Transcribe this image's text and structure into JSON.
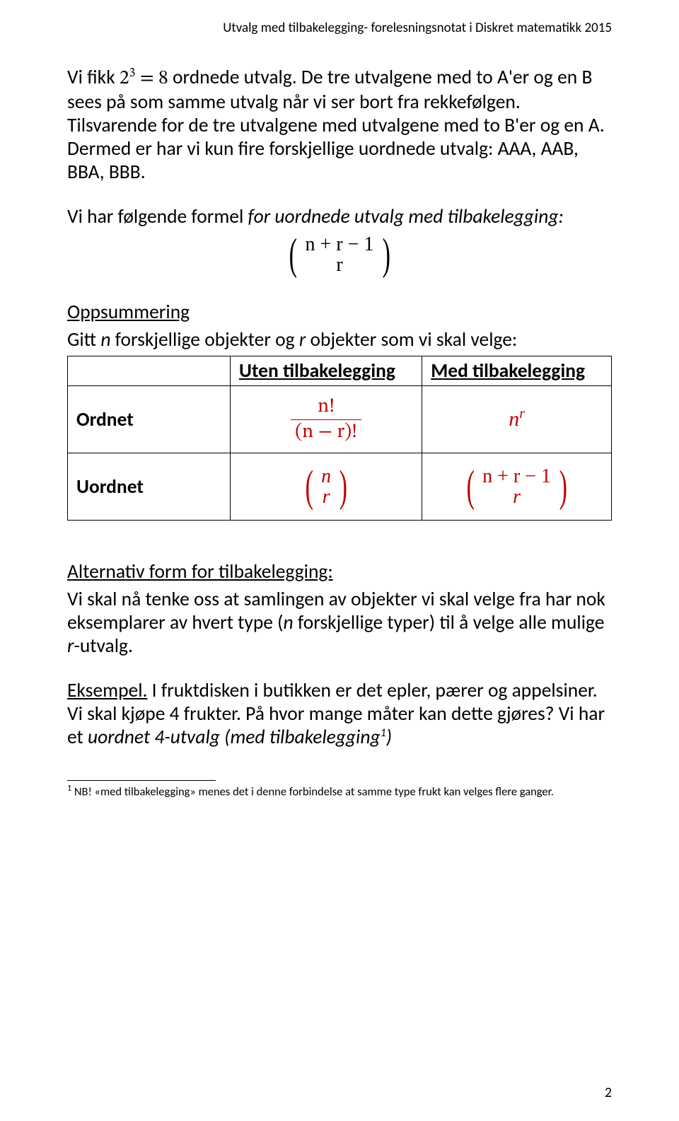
{
  "colors": {
    "text": "#000000",
    "formula_red": "#c00000",
    "background": "#ffffff",
    "border": "#000000"
  },
  "typography": {
    "body_fontsize_pt": 20,
    "header_fontsize_pt": 14,
    "footnote_fontsize_pt": 12,
    "body_font": "Calibri",
    "math_font": "Cambria Math"
  },
  "header": "Utvalg med tilbakelegging- forelesningsnotat i Diskret matematikk 2015",
  "para1_prefix": "Vi fikk ",
  "para1_math_base": "2",
  "para1_math_exp": "3",
  "para1_math_eq": " = 8",
  "para1_rest": " ordnede utvalg. De tre utvalgene med to A'er og en B sees på som samme utvalg når vi ser bort fra rekkefølgen. Tilsvarende for de tre utvalgene med utvalgene med to B'er og en A. Dermed er har vi kun fire forskjellige uordnede utvalg: AAA, AAB, BBA, BBB.",
  "formula_intro_a": "Vi har følgende formel ",
  "formula_intro_b_italic": "for uordnede utvalg med tilbakelegging:",
  "binom_top": "n + r − 1",
  "binom_bottom": "r",
  "oppsummering_title": "Oppsummering",
  "oppsummering_text_a": "Gitt ",
  "oppsummering_text_b_italic": "n",
  "oppsummering_text_c": " forskjellige objekter og ",
  "oppsummering_text_d_italic": "r",
  "oppsummering_text_e": " objekter som vi skal velge:",
  "table": {
    "type": "table",
    "border_color": "#000000",
    "columns": [
      "",
      "Uten tilbakelegging",
      "Med tilbakelegging"
    ],
    "row1_label": "Ordnet",
    "row1_cell1_num": "n!",
    "row1_cell1_den": "(n − r)!",
    "row1_cell2_base": "n",
    "row1_cell2_exp": "r",
    "row2_label": "Uordnet",
    "row2_cell1_top": "n",
    "row2_cell1_bot": "r",
    "row2_cell2_top": "n + r − 1",
    "row2_cell2_bot": "r",
    "formula_color": "#c00000"
  },
  "alt_title": "Alternativ form for tilbakelegging:",
  "alt_text_a": "Vi skal nå tenke oss at samlingen av objekter vi skal velge fra har nok eksemplarer av hvert type (",
  "alt_text_b_italic": "n",
  "alt_text_c": " forskjellige typer) til å velge alle mulige ",
  "alt_text_d_italic": "r",
  "alt_text_e": "-utvalg.",
  "eksempel_label": "Eksempel.",
  "eksempel_a": " I fruktdisken i butikken er det epler, pærer og appelsiner. Vi skal kjøpe 4 frukter. På hvor mange måter kan dette gjøres? Vi har et ",
  "eksempel_b_italic": "uordnet 4-utvalg (med tilbakelegging",
  "eksempel_footref": "1",
  "eksempel_c_italic": ")",
  "footnote_ref": "1",
  "footnote_text": " NB! «med tilbakelegging» menes det i denne forbindelse at samme type frukt kan velges flere ganger.",
  "page_number": "2"
}
